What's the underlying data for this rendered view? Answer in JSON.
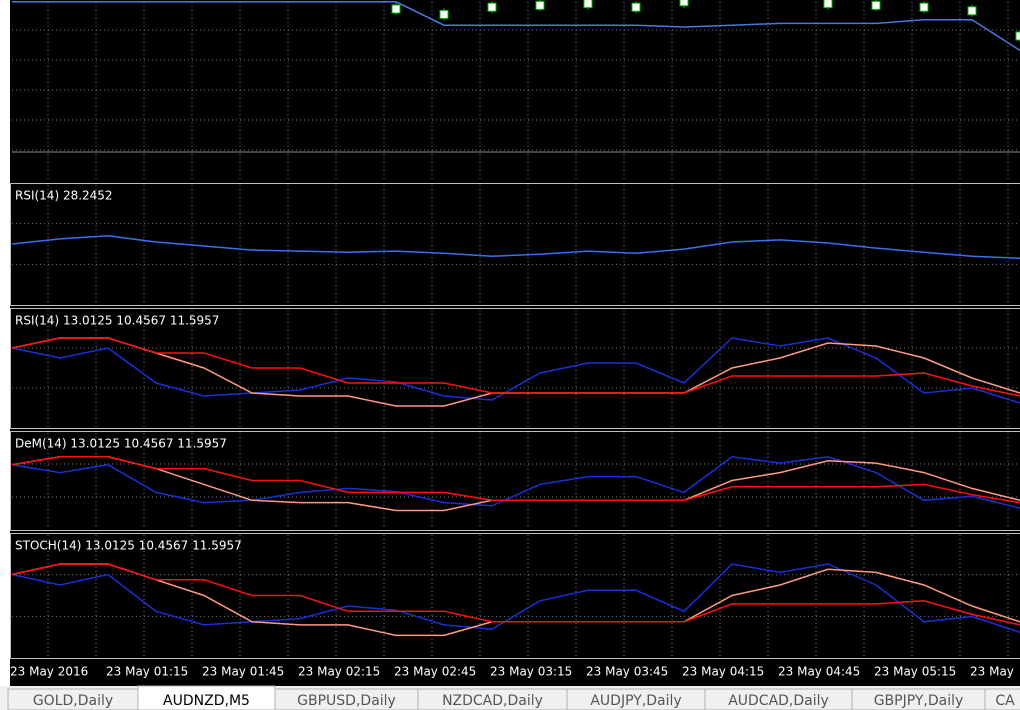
{
  "main": {
    "lines": [
      {
        "color": "#4a78e0",
        "values": [
          99,
          99,
          99,
          99,
          99,
          99,
          99,
          99,
          99,
          86,
          86,
          86,
          86,
          86,
          85,
          86,
          87,
          87,
          87,
          89,
          89,
          72
        ]
      }
    ],
    "candles": {
      "color": "#00c000",
      "values": [
        null,
        null,
        null,
        null,
        null,
        null,
        null,
        null,
        95,
        92,
        96,
        97,
        98,
        96,
        99,
        null,
        null,
        98,
        97,
        96,
        94,
        80
      ]
    }
  },
  "panels": [
    {
      "label": "RSI(14) 28.2452",
      "lines": [
        {
          "color": "#3a6ef0",
          "values": [
            50,
            55,
            58,
            52,
            48,
            44,
            43,
            42,
            43,
            41,
            38,
            40,
            43,
            41,
            45,
            52,
            54,
            51,
            46,
            42,
            38,
            36
          ]
        }
      ]
    },
    {
      "label": "RSI(14) 13.0125 10.4567 11.5957",
      "lines": [
        {
          "color": "#1830d8",
          "values": [
            70,
            60,
            70,
            35,
            22,
            25,
            28,
            40,
            36,
            22,
            18,
            45,
            55,
            55,
            35,
            80,
            72,
            80,
            60,
            25,
            30,
            15
          ]
        },
        {
          "color": "#ff9a80",
          "values": [
            70,
            80,
            80,
            65,
            50,
            25,
            22,
            22,
            12,
            12,
            25,
            25,
            25,
            25,
            25,
            50,
            60,
            75,
            72,
            60,
            40,
            25
          ]
        },
        {
          "color": "#ff1010",
          "values": [
            70,
            80,
            80,
            65,
            65,
            50,
            50,
            35,
            35,
            35,
            25,
            25,
            25,
            25,
            25,
            42,
            42,
            42,
            42,
            45,
            32,
            22
          ]
        }
      ]
    },
    {
      "label": "DeM(14) 13.0125 10.4567 11.5957",
      "lines": [
        {
          "color": "#1830d8",
          "values": [
            70,
            60,
            70,
            35,
            22,
            25,
            35,
            40,
            36,
            22,
            18,
            45,
            55,
            55,
            35,
            80,
            72,
            80,
            60,
            25,
            30,
            15
          ]
        },
        {
          "color": "#ff9a80",
          "values": [
            70,
            80,
            80,
            65,
            45,
            25,
            22,
            22,
            12,
            12,
            25,
            25,
            25,
            25,
            25,
            50,
            60,
            75,
            72,
            60,
            40,
            25
          ]
        },
        {
          "color": "#ff1010",
          "values": [
            70,
            80,
            80,
            65,
            65,
            50,
            50,
            35,
            35,
            35,
            25,
            25,
            25,
            25,
            25,
            42,
            42,
            42,
            42,
            45,
            32,
            22
          ]
        }
      ]
    },
    {
      "label": "STOCH(14) 13.0125 10.4567 11.5957",
      "lines": [
        {
          "color": "#1830d8",
          "values": [
            70,
            60,
            70,
            35,
            22,
            25,
            28,
            40,
            36,
            22,
            18,
            45,
            55,
            55,
            35,
            80,
            72,
            80,
            60,
            25,
            30,
            15
          ]
        },
        {
          "color": "#ff9a80",
          "values": [
            70,
            80,
            80,
            65,
            50,
            25,
            22,
            22,
            12,
            12,
            25,
            25,
            25,
            25,
            25,
            50,
            60,
            75,
            72,
            60,
            40,
            25
          ]
        },
        {
          "color": "#ff1010",
          "values": [
            70,
            80,
            80,
            65,
            65,
            50,
            50,
            35,
            35,
            35,
            25,
            25,
            25,
            25,
            25,
            42,
            42,
            42,
            42,
            45,
            32,
            22
          ]
        }
      ]
    }
  ],
  "time_labels": [
    "23 May 2016",
    "23 May 01:15",
    "23 May 01:45",
    "23 May 02:15",
    "23 May 02:45",
    "23 May 03:15",
    "23 May 03:45",
    "23 May 04:15",
    "23 May 04:45",
    "23 May 05:15",
    "23 May"
  ],
  "tabs": [
    "GOLD,Daily",
    "AUDNZD,M5",
    "GBPUSD,Daily",
    "NZDCAD,Daily",
    "AUDJPY,Daily",
    "AUDCAD,Daily",
    "GBPJPY,Daily",
    "CA"
  ],
  "active_tab": 1
}
